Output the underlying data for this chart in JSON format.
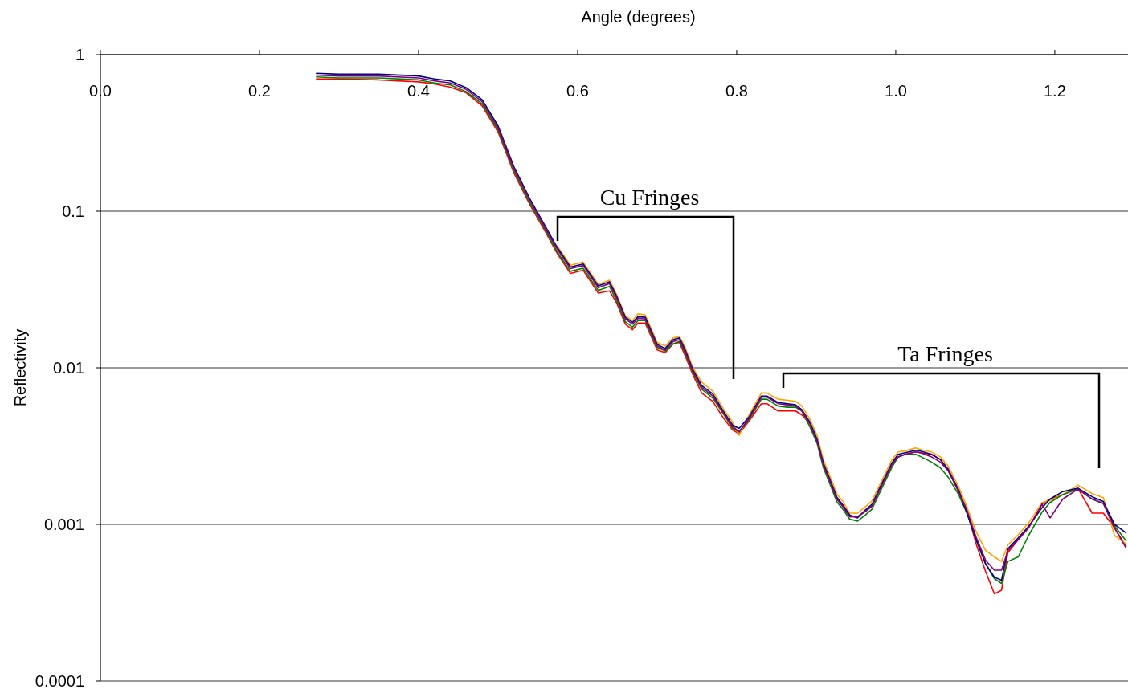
{
  "chart_data": {
    "type": "line",
    "xlabel": "Angle (degrees)",
    "ylabel": "Reflectivity",
    "log": "y",
    "grid": "y",
    "marker": "none",
    "line_style": "solid",
    "xlim": [
      0,
      1.29
    ],
    "xticks": [
      {
        "value": 0,
        "label": "0.0"
      },
      0.2,
      0.4,
      0.6,
      0.8,
      {
        "value": 1,
        "label": "1.0"
      },
      1.2
    ],
    "ylim": [
      0.0001,
      1
    ],
    "yticks": [
      0.0001,
      0.001,
      0.01,
      0.1,
      1
    ],
    "x": [
      0.271,
      0.3,
      0.35,
      0.4,
      0.42,
      0.44,
      0.46,
      0.48,
      0.5,
      0.52,
      0.54,
      0.56,
      0.574,
      0.591,
      0.607,
      0.626,
      0.64,
      0.649,
      0.66,
      0.669,
      0.676,
      0.685,
      0.7,
      0.71,
      0.72,
      0.728,
      0.735,
      0.745,
      0.756,
      0.77,
      0.783,
      0.795,
      0.803,
      0.816,
      0.831,
      0.838,
      0.852,
      0.864,
      0.874,
      0.882,
      0.892,
      0.901,
      0.909,
      0.917,
      0.926,
      0.934,
      0.942,
      0.952,
      0.962,
      0.97,
      0.98,
      0.995,
      1.003,
      1.012,
      1.025,
      1.032,
      1.045,
      1.056,
      1.066,
      1.079,
      1.089,
      1.101,
      1.113,
      1.124,
      1.133,
      1.141,
      1.154,
      1.167,
      1.184,
      1.194,
      1.21,
      1.229,
      1.247,
      1.261,
      1.275,
      1.29
    ],
    "series": [
      {
        "color": "#ff0000",
        "values": [
          0.7,
          0.7,
          0.69,
          0.67,
          0.65,
          0.62,
          0.57,
          0.47,
          0.32,
          0.175,
          0.11,
          0.073,
          0.054,
          0.04,
          0.042,
          0.03,
          0.031,
          0.026,
          0.019,
          0.0175,
          0.0193,
          0.0193,
          0.013,
          0.0125,
          0.0142,
          0.0145,
          0.012,
          0.009,
          0.0069,
          0.0061,
          0.0048,
          0.004,
          0.0038,
          0.0046,
          0.0059,
          0.0059,
          0.0053,
          0.0053,
          0.0053,
          0.005,
          0.0044,
          0.0034,
          0.0024,
          0.0019,
          0.00145,
          0.00129,
          0.00112,
          0.00112,
          0.00121,
          0.00131,
          0.00168,
          0.0024,
          0.0027,
          0.0028,
          0.0029,
          0.00286,
          0.0028,
          0.0026,
          0.0022,
          0.00162,
          0.00125,
          0.00075,
          0.0005,
          0.00036,
          0.00038,
          0.00066,
          0.0008,
          0.00095,
          0.00135,
          0.00145,
          0.00155,
          0.0017,
          0.00118,
          0.00118,
          0.00095,
          0.00072
        ]
      },
      {
        "color": "#ffa500",
        "values": [
          null,
          null,
          null,
          null,
          null,
          null,
          null,
          null,
          null,
          null,
          null,
          null,
          0.0604,
          0.0452,
          0.0473,
          0.0341,
          0.0362,
          0.0294,
          0.0215,
          0.02,
          0.0221,
          0.0218,
          0.0145,
          0.0138,
          0.0155,
          0.0159,
          0.0136,
          0.01,
          0.0081,
          0.0071,
          0.0055,
          0.0045,
          0.0037,
          0.00505,
          0.0069,
          0.0069,
          0.0063,
          0.0062,
          0.0061,
          0.0057,
          0.0047,
          0.0037,
          0.00258,
          0.00205,
          0.00156,
          0.00139,
          0.00118,
          0.00118,
          0.0013,
          0.00141,
          0.0018,
          0.00258,
          0.0029,
          0.00295,
          0.00308,
          0.003,
          0.0029,
          0.0027,
          0.00236,
          0.00174,
          0.00131,
          0.0009,
          0.00068,
          0.00062,
          0.00058,
          0.00074,
          0.00086,
          0.00102,
          0.00138,
          0.00142,
          0.00155,
          0.00178,
          0.00157,
          0.00148,
          0.00085,
          0.00075
        ]
      },
      {
        "color": "#008000",
        "values": [
          0.72,
          0.71,
          0.71,
          0.69,
          0.66,
          0.64,
          0.58,
          0.485,
          0.33,
          0.181,
          0.113,
          0.075,
          0.0552,
          0.0413,
          0.0432,
          0.0312,
          0.0331,
          0.0269,
          0.0197,
          0.0182,
          0.02,
          0.02,
          0.0135,
          0.0128,
          0.0142,
          0.0147,
          0.0125,
          0.0093,
          0.0073,
          0.0064,
          0.0051,
          0.0041,
          0.0039,
          0.0047,
          0.0063,
          0.0063,
          0.0057,
          0.0056,
          0.0056,
          0.0053,
          0.0042,
          0.0033,
          0.0023,
          0.00182,
          0.00139,
          0.00124,
          0.00108,
          0.00105,
          0.00115,
          0.00125,
          0.0016,
          0.0023,
          0.0027,
          0.0028,
          0.0028,
          0.0027,
          0.0025,
          0.0023,
          0.002,
          0.00155,
          0.0012,
          0.0008,
          0.00056,
          0.00045,
          0.00042,
          0.00058,
          0.00062,
          0.00085,
          0.0012,
          0.00138,
          0.00155,
          0.00168,
          0.00145,
          0.00136,
          0.00098,
          0.00078
        ]
      },
      {
        "color": "#000080",
        "values": [
          0.76,
          0.75,
          0.75,
          0.73,
          0.7,
          0.68,
          0.615,
          0.515,
          0.35,
          0.192,
          0.12,
          0.079,
          0.059,
          0.044,
          0.046,
          0.0333,
          0.0354,
          0.0287,
          0.021,
          0.0195,
          0.0212,
          0.021,
          0.0141,
          0.0133,
          0.0151,
          0.0155,
          0.0131,
          0.0097,
          0.0077,
          0.0068,
          0.0053,
          0.0043,
          0.0041,
          0.0049,
          0.0066,
          0.0066,
          0.006,
          0.0059,
          0.0058,
          0.0054,
          0.0045,
          0.0035,
          0.00246,
          0.00195,
          0.00149,
          0.00132,
          0.00115,
          0.0011,
          0.00124,
          0.00134,
          0.00172,
          0.00246,
          0.0028,
          0.00287,
          0.00297,
          0.00293,
          0.0028,
          0.0026,
          0.00225,
          0.00166,
          0.0012,
          0.0008,
          0.00056,
          0.00046,
          0.00044,
          0.0007,
          0.00082,
          0.00097,
          0.00128,
          0.00145,
          0.00162,
          0.0017,
          0.0015,
          0.0014,
          0.001,
          0.00088
        ]
      },
      {
        "color": "#800080",
        "values": [
          0.74,
          0.73,
          0.73,
          0.71,
          0.68,
          0.66,
          0.6,
          0.5,
          0.34,
          0.187,
          0.117,
          0.077,
          0.0575,
          0.043,
          0.045,
          0.0325,
          0.0345,
          0.028,
          0.0205,
          0.019,
          0.0207,
          0.0205,
          0.0138,
          0.013,
          0.0147,
          0.0151,
          0.0128,
          0.0095,
          0.0075,
          0.0066,
          0.0052,
          0.0042,
          0.0039,
          0.0048,
          0.0065,
          0.0065,
          0.0059,
          0.0058,
          0.0057,
          0.0053,
          0.0044,
          0.0034,
          0.0024,
          0.0019,
          0.00145,
          0.00129,
          0.00112,
          0.00112,
          0.00121,
          0.00131,
          0.00168,
          0.0024,
          0.0027,
          0.0028,
          0.0029,
          0.00286,
          0.0027,
          0.0025,
          0.0022,
          0.00162,
          0.00125,
          0.00083,
          0.00059,
          0.00051,
          0.00051,
          0.00068,
          0.0008,
          0.00095,
          0.00135,
          0.0011,
          0.00145,
          0.00168,
          0.00145,
          0.00136,
          0.00095,
          0.0007
        ]
      }
    ],
    "annotations": [
      "Cu Fringes",
      "Ta Fringes"
    ]
  }
}
